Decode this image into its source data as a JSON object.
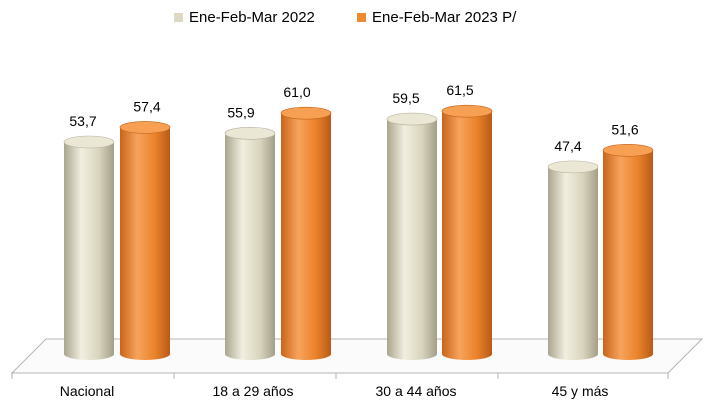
{
  "chart_data": {
    "type": "bar",
    "style": "3d-cylinder",
    "categories": [
      "Nacional",
      "18 a 29 años",
      "30 a 44 años",
      "45 y más"
    ],
    "series": [
      {
        "name": "Ene-Feb-Mar 2022",
        "color": "#ddd9c4",
        "values": [
          53.7,
          55.9,
          59.5,
          47.4
        ],
        "labels": [
          "53,7",
          "55,9",
          "59,5",
          "47,4"
        ]
      },
      {
        "name": "Ene-Feb-Mar 2023 P/",
        "color": "#f08a32",
        "values": [
          57.4,
          61.0,
          61.5,
          51.6
        ],
        "labels": [
          "57,4",
          "61,0",
          "61,5",
          "51,6"
        ]
      }
    ],
    "y_axis_visible": false,
    "gridlines": false,
    "legend_position": "top"
  }
}
